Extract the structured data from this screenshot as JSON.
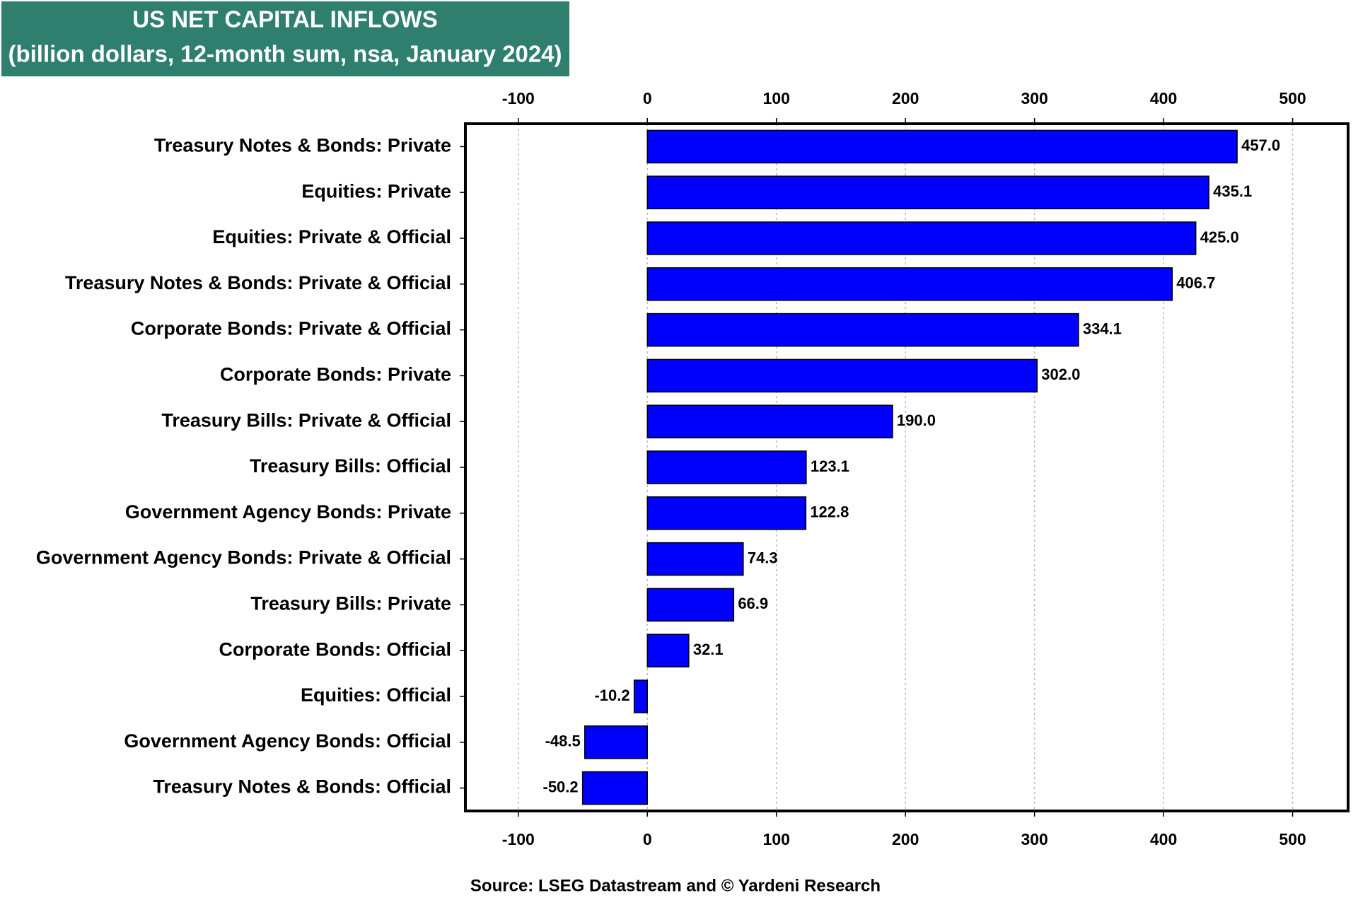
{
  "chart_data": {
    "type": "bar",
    "orientation": "horizontal",
    "title": "US NET CAPITAL INFLOWS",
    "subtitle": "(billion dollars, 12-month sum, nsa, January 2024)",
    "source": "Source: LSEG Datastream and © Yardeni Research",
    "categories": [
      "Treasury Notes & Bonds: Private",
      "Equities: Private",
      "Equities: Private & Official",
      "Treasury Notes & Bonds: Private & Official",
      "Corporate Bonds: Private & Official",
      "Corporate Bonds: Private",
      "Treasury Bills: Private & Official",
      "Treasury Bills: Official",
      "Government Agency Bonds: Private",
      "Government Agency Bonds: Private & Official",
      "Treasury Bills: Private",
      "Corporate Bonds: Official",
      "Equities: Official",
      "Government Agency Bonds: Official",
      "Treasury Notes & Bonds: Official"
    ],
    "values": [
      457.0,
      435.1,
      425.0,
      406.7,
      334.1,
      302.0,
      190.0,
      123.1,
      122.8,
      74.3,
      66.9,
      32.1,
      -10.2,
      -48.5,
      -50.2
    ],
    "value_labels": [
      "457.0",
      "435.1",
      "425.0",
      "406.7",
      "334.1",
      "302.0",
      "190.0",
      "123.1",
      "122.8",
      "74.3",
      "66.9",
      "32.1",
      "-10.2",
      "-48.5",
      "-50.2"
    ],
    "color": "#0000ff",
    "xlim": [
      -141,
      543
    ],
    "xticks": [
      -100,
      0,
      100,
      200,
      300,
      400,
      500
    ],
    "grid": true
  }
}
